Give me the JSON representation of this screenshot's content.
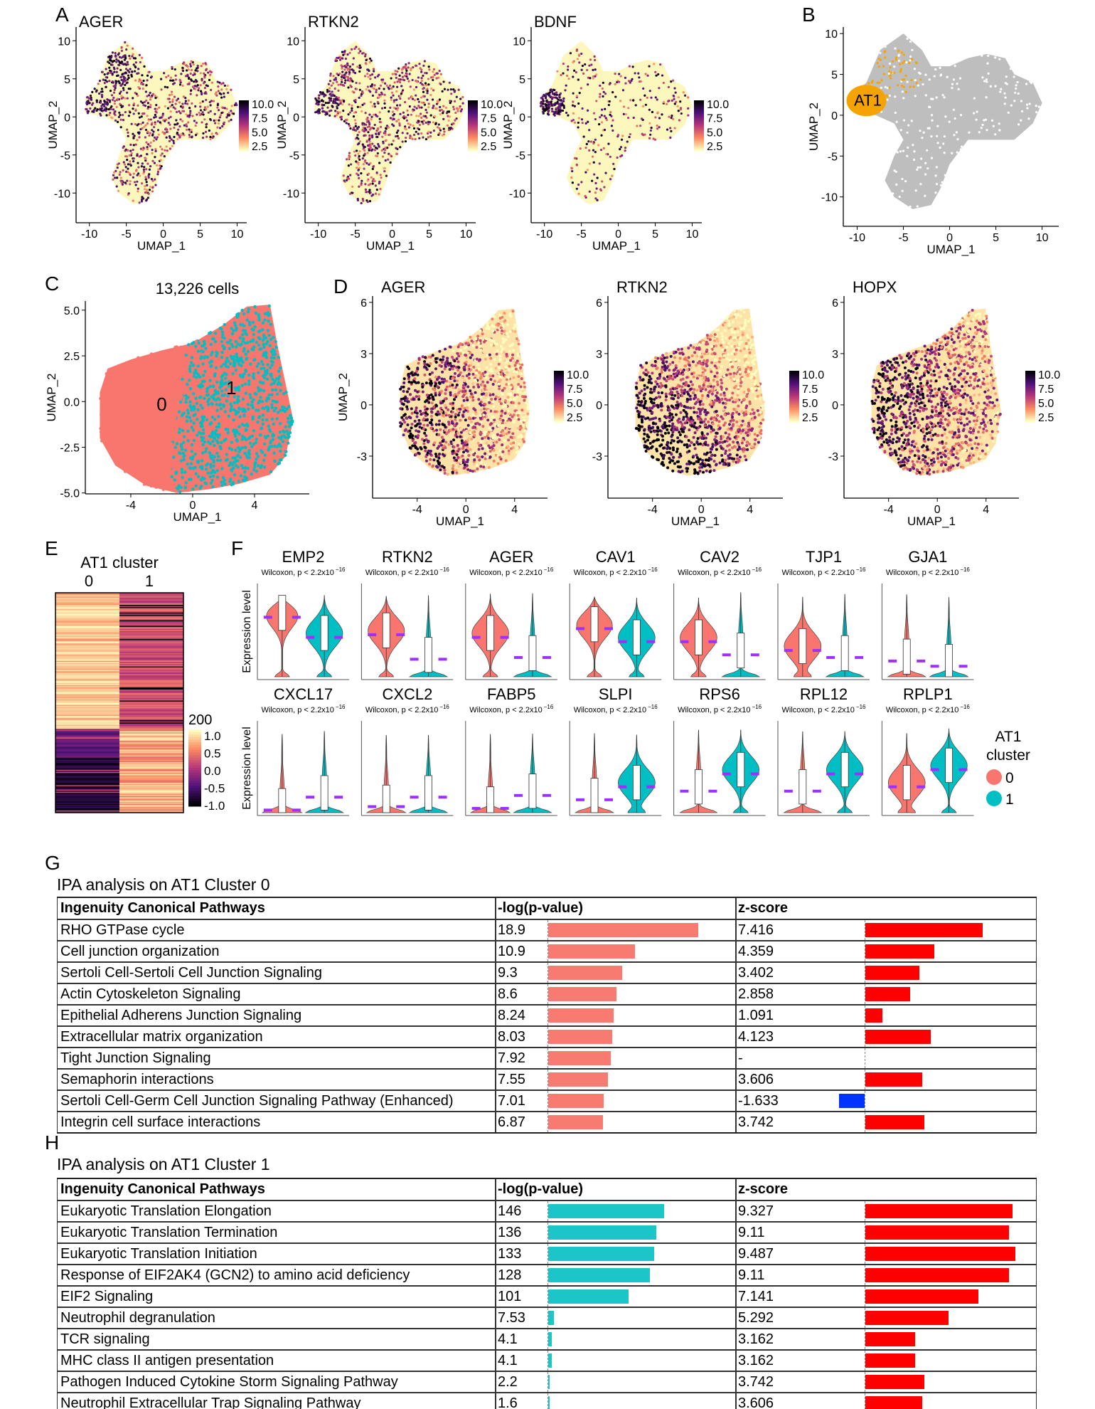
{
  "panel_labels": [
    "A",
    "B",
    "C",
    "D",
    "E",
    "F",
    "G",
    "H"
  ],
  "colors": {
    "cluster0": "#F8766D",
    "cluster1": "#00BFC4",
    "at1_highlight": "#F5A300",
    "background_cells": "#BEBEBE",
    "feature_low": "#FCF8BD",
    "mean_marker": "#9B30FF",
    "pval_bar_cluster0": "#F87B72",
    "pval_bar_cluster1": "#1CC5C8",
    "zscore_positive": "#FF0000",
    "zscore_negative": "#0033FF"
  },
  "chart_data": [
    {
      "type": "scatter",
      "title": "AGER",
      "xlabel": "UMAP_1",
      "ylabel": "UMAP_2",
      "xticks": [
        "-10",
        "-5",
        "0",
        "5",
        "10"
      ],
      "yticks": [
        "10",
        "5",
        "0",
        "-5",
        "-10"
      ],
      "xlim": [
        -11.8,
        11.3
      ],
      "ylim": [
        -13.9,
        11.8
      ],
      "colorbar_ticks": [
        "10.0",
        "7.5",
        "5.0",
        "2.5"
      ]
    },
    {
      "type": "scatter",
      "title": "RTKN2",
      "xlabel": "UMAP_1",
      "ylabel": "UMAP_2",
      "xticks": [
        "-10",
        "-5",
        "0",
        "5",
        "10"
      ],
      "yticks": [
        "10",
        "5",
        "0",
        "-5",
        "-10"
      ],
      "xlim": [
        -11.8,
        11.3
      ],
      "ylim": [
        -13.9,
        11.8
      ],
      "colorbar_ticks": [
        "10.0",
        "7.5",
        "5.0",
        "2.5"
      ]
    },
    {
      "type": "scatter",
      "title": "BDNF",
      "xlabel": "UMAP_1",
      "ylabel": "UMAP_2",
      "xticks": [
        "-10",
        "-5",
        "0",
        "5",
        "10"
      ],
      "yticks": [
        "10",
        "5",
        "0",
        "-5",
        "-10"
      ],
      "xlim": [
        -11.8,
        11.3
      ],
      "ylim": [
        -13.9,
        11.8
      ],
      "colorbar_ticks": [
        "10.0",
        "7.5",
        "5.0",
        "2.5"
      ]
    },
    {
      "type": "scatter",
      "cluster_label": "AT1",
      "xlabel": "UMAP_1",
      "ylabel": "UMAP_2",
      "xticks": [
        "-10",
        "-5",
        "0",
        "5",
        "10"
      ],
      "yticks": [
        "10",
        "5",
        "0",
        "-5",
        "-10"
      ],
      "xlim": [
        -11.5,
        11.8
      ],
      "ylim": [
        -13.6,
        10.8
      ]
    },
    {
      "type": "scatter",
      "title": "13,226 cells",
      "clusters": [
        "0",
        "1"
      ],
      "xlabel": "UMAP_1",
      "ylabel": "UMAP_2",
      "xticks": [
        "-4",
        "0",
        "4"
      ],
      "yticks": [
        "5.0",
        "2.5",
        "0.0",
        "-2.5",
        "-5.0"
      ],
      "xlim": [
        -6.94,
        7.54
      ],
      "ylim": [
        -5.05,
        5.5
      ]
    },
    {
      "type": "scatter",
      "title": "AGER",
      "xlabel": "UMAP_1",
      "ylabel": "UMAP_2",
      "xticks": [
        "-4",
        "0",
        "4"
      ],
      "yticks": [
        "6",
        "3",
        "0",
        "-3"
      ],
      "xlim": [
        -7.66,
        6.7
      ],
      "ylim": [
        -5.46,
        6.37
      ],
      "colorbar_ticks": [
        "10.0",
        "7.5",
        "5.0",
        "2.5"
      ]
    },
    {
      "type": "scatter",
      "title": "RTKN2",
      "xlabel": "UMAP_1",
      "ylabel": "UMAP_2",
      "xticks": [
        "-4",
        "0",
        "4"
      ],
      "yticks": [
        "6",
        "3",
        "0",
        "-3"
      ],
      "xlim": [
        -7.66,
        6.7
      ],
      "ylim": [
        -5.46,
        6.37
      ],
      "colorbar_ticks": [
        "10.0",
        "7.5",
        "5.0",
        "2.5"
      ]
    },
    {
      "type": "scatter",
      "title": "HOPX",
      "xlabel": "UMAP_1",
      "ylabel": "UMAP_2",
      "xticks": [
        "-4",
        "0",
        "4"
      ],
      "yticks": [
        "6",
        "3",
        "0",
        "-3"
      ],
      "xlim": [
        -7.66,
        6.7
      ],
      "ylim": [
        -5.46,
        6.37
      ],
      "colorbar_ticks": [
        "10.0",
        "7.5",
        "5.0",
        "2.5"
      ]
    },
    {
      "type": "heatmap",
      "title": "AT1 cluster",
      "columns": [
        "0",
        "1"
      ],
      "legend_title": "200",
      "legend_ticks": [
        "1.0",
        "0.5",
        "0.0",
        "-0.5",
        "-1.0"
      ],
      "color_range": [
        -1,
        1
      ]
    },
    {
      "type": "violin",
      "ylabel": "Expression level",
      "test_label": "Wilcoxon, p < 2.2x10",
      "test_exponent": "−16",
      "legend_title": [
        "AT1",
        "cluster"
      ],
      "legend_entries": [
        "0",
        "1"
      ],
      "genes": [
        {
          "name": "EMP2",
          "mean": [
            0.68,
            0.45
          ]
        },
        {
          "name": "RTKN2",
          "mean": [
            0.48,
            0.2
          ]
        },
        {
          "name": "AGER",
          "mean": [
            0.45,
            0.22
          ]
        },
        {
          "name": "CAV1",
          "mean": [
            0.55,
            0.4
          ]
        },
        {
          "name": "CAV2",
          "mean": [
            0.4,
            0.25
          ]
        },
        {
          "name": "TJP1",
          "mean": [
            0.3,
            0.22
          ]
        },
        {
          "name": "GJA1",
          "mean": [
            0.18,
            0.12
          ]
        },
        {
          "name": "CXCL17",
          "mean": [
            0.03,
            0.18
          ]
        },
        {
          "name": "CXCL2",
          "mean": [
            0.07,
            0.18
          ]
        },
        {
          "name": "FABP5",
          "mean": [
            0.05,
            0.2
          ]
        },
        {
          "name": "SLPI",
          "mean": [
            0.15,
            0.3
          ]
        },
        {
          "name": "RPS6",
          "mean": [
            0.25,
            0.45
          ]
        },
        {
          "name": "RPL12",
          "mean": [
            0.25,
            0.45
          ]
        },
        {
          "name": "RPLP1",
          "mean": [
            0.3,
            0.5
          ]
        }
      ]
    },
    {
      "type": "table",
      "title": "IPA analysis on AT1 Cluster 0",
      "headers": [
        "Ingenuity Canonical Pathways",
        "-log(p-value)",
        "z-score"
      ],
      "rows": [
        {
          "pathway": "RHO GTPase cycle",
          "logp": "18.9",
          "z": "7.416"
        },
        {
          "pathway": "Cell junction organization",
          "logp": "10.9",
          "z": "4.359"
        },
        {
          "pathway": "Sertoli Cell-Sertoli Cell Junction Signaling",
          "logp": "9.3",
          "z": "3.402"
        },
        {
          "pathway": "Actin Cytoskeleton Signaling",
          "logp": "8.6",
          "z": "2.858"
        },
        {
          "pathway": "Epithelial Adherens Junction Signaling",
          "logp": "8.24",
          "z": "1.091"
        },
        {
          "pathway": "Extracellular matrix organization",
          "logp": "8.03",
          "z": "4.123"
        },
        {
          "pathway": "Tight Junction Signaling",
          "logp": "7.92",
          "z": "-"
        },
        {
          "pathway": "Semaphorin interactions",
          "logp": "7.55",
          "z": "3.606"
        },
        {
          "pathway": "Sertoli Cell-Germ Cell Junction Signaling Pathway  (Enhanced)",
          "logp": "7.01",
          "z": "-1.633"
        },
        {
          "pathway": "Integrin cell surface interactions",
          "logp": "6.87",
          "z": "3.742"
        }
      ]
    },
    {
      "type": "table",
      "title": "IPA analysis on AT1 Cluster 1",
      "headers": [
        "Ingenuity Canonical Pathways",
        "-log(p-value)",
        "z-score"
      ],
      "rows": [
        {
          "pathway": "Eukaryotic Translation Elongation",
          "logp": "146",
          "z": "9.327"
        },
        {
          "pathway": "Eukaryotic Translation Termination",
          "logp": "136",
          "z": "9.11"
        },
        {
          "pathway": "Eukaryotic Translation Initiation",
          "logp": "133",
          "z": "9.487"
        },
        {
          "pathway": "Response of EIF2AK4 (GCN2) to amino acid deficiency",
          "logp": "128",
          "z": "9.11"
        },
        {
          "pathway": "EIF2 Signaling",
          "logp": "101",
          "z": "7.141"
        },
        {
          "pathway": "Neutrophil degranulation",
          "logp": "7.53",
          "z": "5.292"
        },
        {
          "pathway": "TCR signaling",
          "logp": "4.1",
          "z": "3.162"
        },
        {
          "pathway": "MHC class II antigen presentation",
          "logp": "4.1",
          "z": "3.162"
        },
        {
          "pathway": "Pathogen Induced Cytokine Storm Signaling Pathway",
          "logp": "2.2",
          "z": "3.742"
        },
        {
          "pathway": "Neutrophil Extracellular Trap Signaling Pathway",
          "logp": "1.6",
          "z": "3.606"
        }
      ]
    }
  ]
}
